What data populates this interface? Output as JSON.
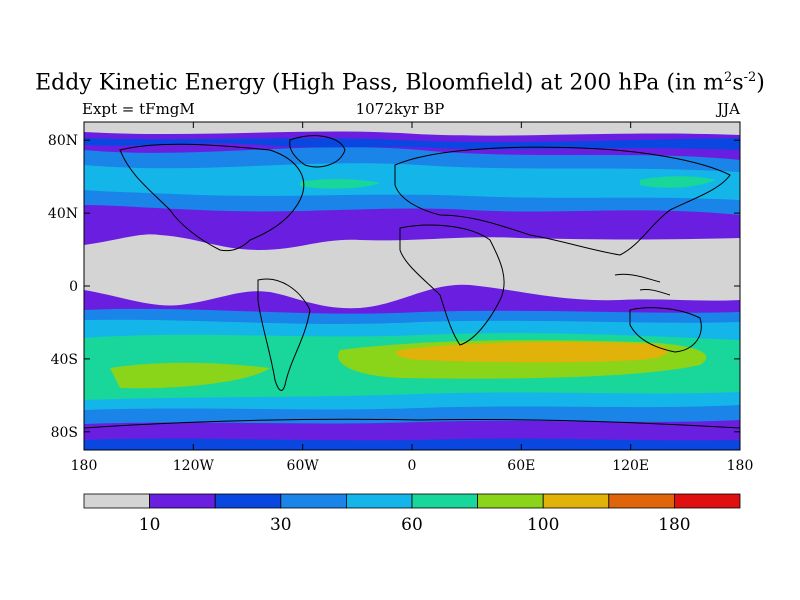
{
  "title": {
    "main": "Eddy Kinetic Energy (High Pass, Bloomfield) at 200 hPa (in m",
    "sup1": "2",
    "mid": "s",
    "sup2": "-2",
    "end": ")"
  },
  "subtitle": {
    "left": "Expt = tFmgM",
    "center": "1072kyr BP",
    "right": "JJA"
  },
  "axes": {
    "lat_labels": [
      "80N",
      "40N",
      "0",
      "40S",
      "80S"
    ],
    "lon_labels": [
      "180",
      "120W",
      "60W",
      "0",
      "60E",
      "120E",
      "180"
    ]
  },
  "colorbar": {
    "colors": [
      "#d4d4d4",
      "#6a1fe0",
      "#0a46e0",
      "#1a84e8",
      "#14b6ea",
      "#19d69a",
      "#8ad41a",
      "#e0b20a",
      "#e0640a",
      "#e01010"
    ],
    "labels": [
      "10",
      "30",
      "60",
      "100",
      "180"
    ]
  },
  "chart_data": {
    "type": "heatmap",
    "field": "Eddy Kinetic Energy (High Pass, Bloomfield) at 200 hPa",
    "season": "JJA",
    "experiment": "tFmgM",
    "time": "1072kyr BP",
    "xrange": [
      -180,
      180
    ],
    "yrange": [
      -90,
      90
    ],
    "latitude_bands_colors": [
      {
        "lat": 80,
        "level": "#d4d4d4"
      },
      {
        "lat": 60,
        "level": "#14b6ea"
      },
      {
        "lat": 40,
        "level": "#6a1fe0"
      },
      {
        "lat": 10,
        "level": "#d4d4d4"
      },
      {
        "lat": -20,
        "level": "#6a1fe0"
      },
      {
        "lat": -40,
        "level": "#8ad41a"
      },
      {
        "lat": -60,
        "level": "#1a84e8"
      },
      {
        "lat": -80,
        "level": "#6a1fe0"
      }
    ]
  }
}
